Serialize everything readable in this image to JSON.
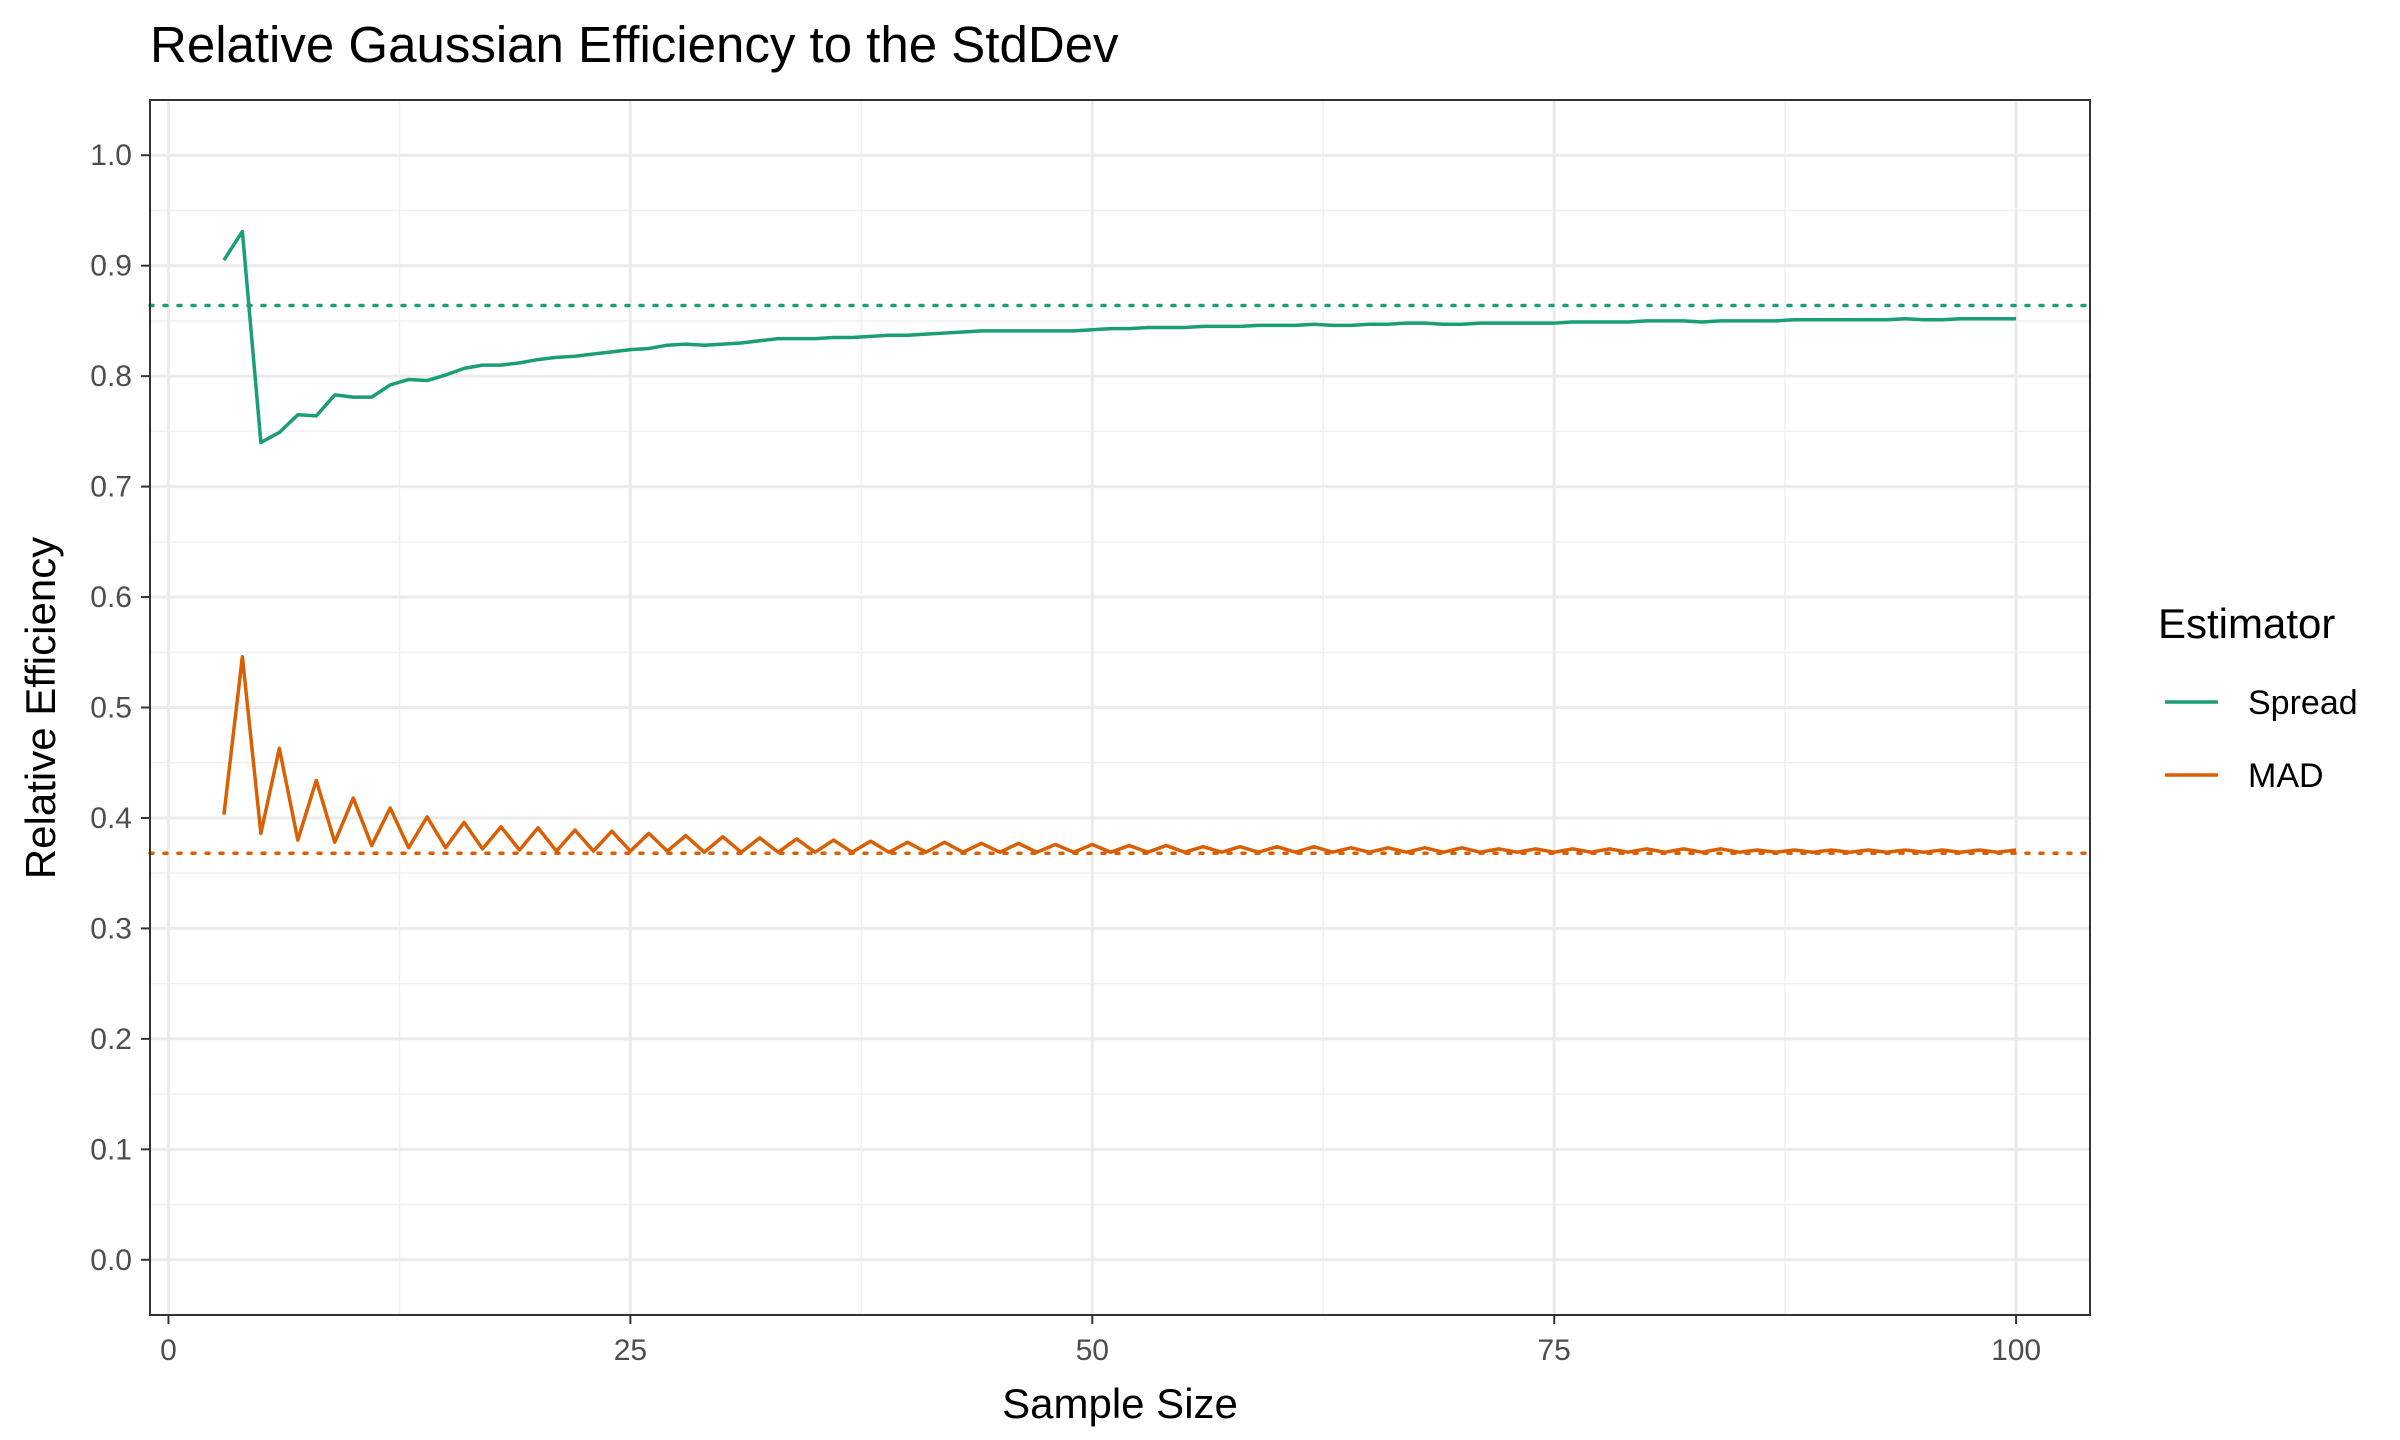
{
  "chart_data": {
    "type": "line",
    "title": "Relative Gaussian Efficiency to the StdDev",
    "xlabel": "Sample Size",
    "ylabel": "Relative Efficiency",
    "xlim": [
      -1,
      104
    ],
    "ylim": [
      -0.05,
      1.05
    ],
    "x_ticks": [
      0,
      25,
      50,
      75,
      100
    ],
    "x_tick_labels": [
      "0",
      "25",
      "50",
      "75",
      "100"
    ],
    "y_ticks": [
      0.0,
      0.1,
      0.2,
      0.3,
      0.4,
      0.5,
      0.6,
      0.7,
      0.8,
      0.9,
      1.0
    ],
    "y_tick_labels": [
      "0.0",
      "0.1",
      "0.2",
      "0.3",
      "0.4",
      "0.5",
      "0.6",
      "0.7",
      "0.8",
      "0.9",
      "1.0"
    ],
    "grid": true,
    "legend": {
      "title": "Estimator",
      "position": "right"
    },
    "x": [
      3,
      4,
      5,
      6,
      7,
      8,
      9,
      10,
      11,
      12,
      13,
      14,
      15,
      16,
      17,
      18,
      19,
      20,
      21,
      22,
      23,
      24,
      25,
      26,
      27,
      28,
      29,
      30,
      31,
      32,
      33,
      34,
      35,
      36,
      37,
      38,
      39,
      40,
      41,
      42,
      43,
      44,
      45,
      46,
      47,
      48,
      49,
      50,
      51,
      52,
      53,
      54,
      55,
      56,
      57,
      58,
      59,
      60,
      61,
      62,
      63,
      64,
      65,
      66,
      67,
      68,
      69,
      70,
      71,
      72,
      73,
      74,
      75,
      76,
      77,
      78,
      79,
      80,
      81,
      82,
      83,
      84,
      85,
      86,
      87,
      88,
      89,
      90,
      91,
      92,
      93,
      94,
      95,
      96,
      97,
      98,
      99,
      100
    ],
    "series": [
      {
        "name": "Spread",
        "color": "#1b9e77",
        "asymptote": 0.864,
        "values": [
          0.905,
          0.931,
          0.74,
          0.749,
          0.765,
          0.764,
          0.783,
          0.781,
          0.781,
          0.792,
          0.797,
          0.796,
          0.801,
          0.807,
          0.81,
          0.81,
          0.812,
          0.815,
          0.817,
          0.818,
          0.82,
          0.822,
          0.824,
          0.825,
          0.828,
          0.829,
          0.828,
          0.829,
          0.83,
          0.832,
          0.834,
          0.834,
          0.834,
          0.835,
          0.835,
          0.836,
          0.837,
          0.837,
          0.838,
          0.839,
          0.84,
          0.841,
          0.841,
          0.841,
          0.841,
          0.841,
          0.841,
          0.842,
          0.843,
          0.843,
          0.844,
          0.844,
          0.844,
          0.845,
          0.845,
          0.845,
          0.846,
          0.846,
          0.846,
          0.847,
          0.846,
          0.846,
          0.847,
          0.847,
          0.848,
          0.848,
          0.847,
          0.847,
          0.848,
          0.848,
          0.848,
          0.848,
          0.848,
          0.849,
          0.849,
          0.849,
          0.849,
          0.85,
          0.85,
          0.85,
          0.849,
          0.85,
          0.85,
          0.85,
          0.85,
          0.851,
          0.851,
          0.851,
          0.851,
          0.851,
          0.851,
          0.852,
          0.851,
          0.851,
          0.852,
          0.852,
          0.852,
          0.852
        ]
      },
      {
        "name": "MAD",
        "color": "#d95f02",
        "asymptote": 0.368,
        "values": [
          0.403,
          0.546,
          0.386,
          0.463,
          0.38,
          0.434,
          0.378,
          0.418,
          0.375,
          0.409,
          0.373,
          0.401,
          0.373,
          0.396,
          0.372,
          0.392,
          0.371,
          0.391,
          0.37,
          0.389,
          0.37,
          0.388,
          0.37,
          0.386,
          0.37,
          0.384,
          0.369,
          0.383,
          0.369,
          0.382,
          0.369,
          0.381,
          0.369,
          0.38,
          0.369,
          0.379,
          0.369,
          0.378,
          0.369,
          0.378,
          0.369,
          0.377,
          0.369,
          0.377,
          0.369,
          0.376,
          0.369,
          0.376,
          0.369,
          0.375,
          0.369,
          0.375,
          0.369,
          0.374,
          0.369,
          0.374,
          0.369,
          0.374,
          0.369,
          0.374,
          0.369,
          0.373,
          0.369,
          0.373,
          0.369,
          0.373,
          0.369,
          0.373,
          0.369,
          0.372,
          0.369,
          0.372,
          0.369,
          0.372,
          0.369,
          0.372,
          0.369,
          0.372,
          0.369,
          0.372,
          0.369,
          0.372,
          0.369,
          0.371,
          0.369,
          0.371,
          0.369,
          0.371,
          0.369,
          0.371,
          0.369,
          0.371,
          0.369,
          0.371,
          0.369,
          0.371,
          0.369,
          0.371
        ]
      }
    ]
  }
}
